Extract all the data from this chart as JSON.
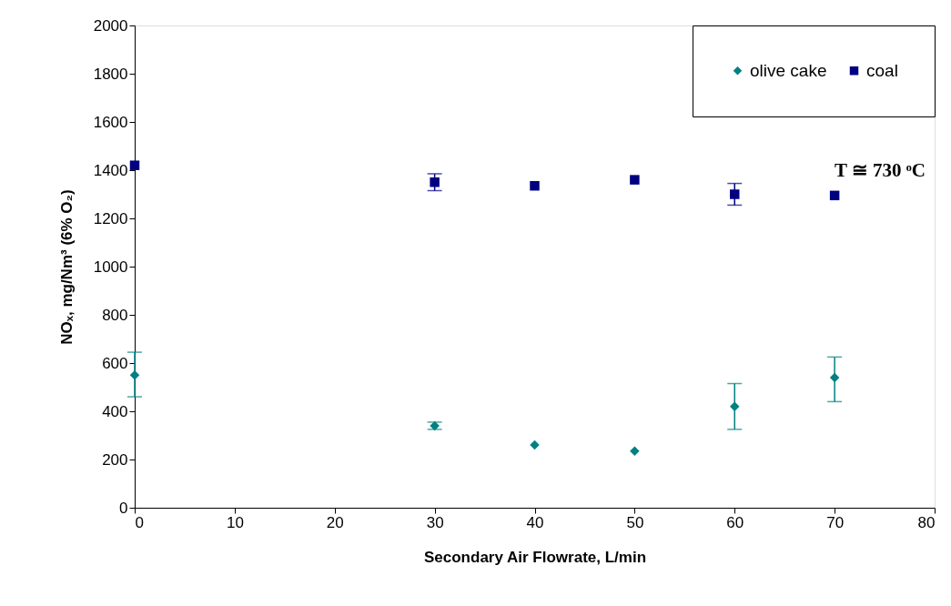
{
  "chart_data": {
    "type": "scatter",
    "xlabel": "Secondary Air Flowrate, L/min",
    "ylabel": "NOₓ, mg/Nm³ (6% O₂)",
    "x": [
      0,
      30,
      40,
      50,
      60,
      70
    ],
    "series": [
      {
        "name": "olive cake",
        "color": "#008080",
        "marker": "diamond",
        "values": [
          550,
          340,
          260,
          235,
          420,
          540
        ],
        "errors": [
          [
            460,
            645
          ],
          15,
          null,
          null,
          [
            325,
            515
          ],
          [
            440,
            625
          ]
        ]
      },
      {
        "name": "coal",
        "color": "#000080",
        "marker": "square",
        "values": [
          1420,
          1350,
          1335,
          1360,
          1300,
          1295
        ],
        "errors": [
          null,
          35,
          null,
          null,
          45,
          null
        ]
      }
    ],
    "xlim": [
      0,
      80
    ],
    "xticks": [
      0,
      10,
      20,
      30,
      40,
      50,
      60,
      70,
      80
    ],
    "ylim": [
      0,
      2000
    ],
    "yticks": [
      0,
      200,
      400,
      600,
      800,
      1000,
      1200,
      1400,
      1600,
      1800,
      2000
    ],
    "annotations": [
      "T ≅ 730 ᵒC"
    ],
    "legend": "top right",
    "grid": false
  }
}
